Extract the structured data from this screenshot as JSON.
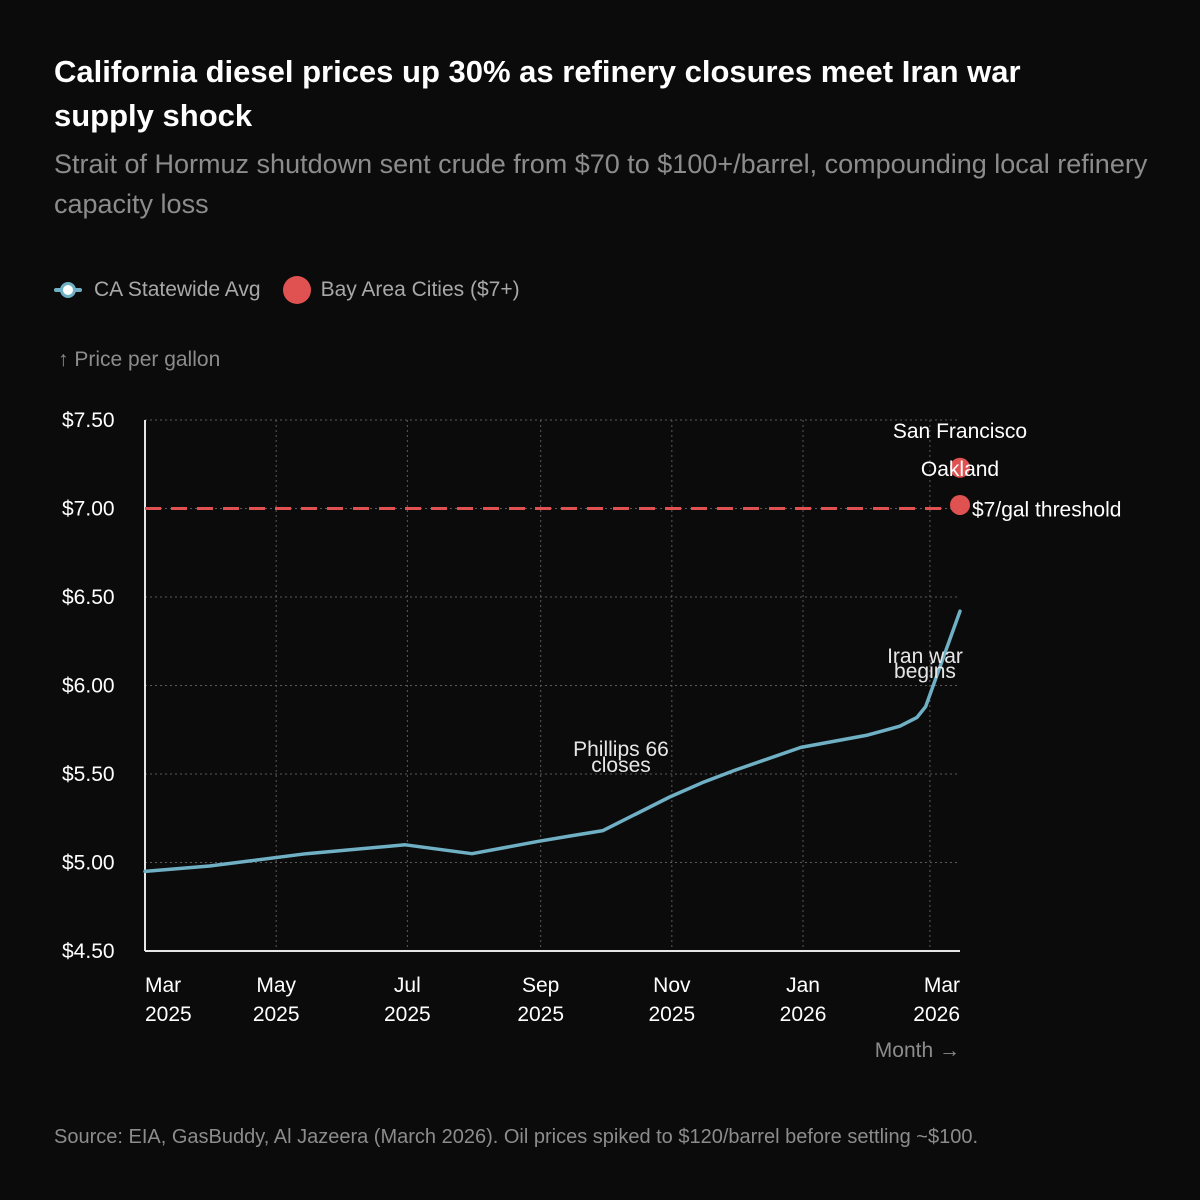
{
  "chart_data": {
    "type": "line",
    "title": "California diesel prices up 30% as refinery closures meet Iran war\n supply shock",
    "subtitle": "Strait of Hormuz shutdown sent crude from $70 to $100+/barrel, compounding local refinery capacity loss",
    "ylabel": "↑ Price per gallon",
    "xlabel": "Month →",
    "ylim": [
      4.5,
      7.5
    ],
    "y_ticks": [
      {
        "value": 4.5,
        "label": "$4.50"
      },
      {
        "value": 5.0,
        "label": "$5.00"
      },
      {
        "value": 5.5,
        "label": "$5.50"
      },
      {
        "value": 6.0,
        "label": "$6.00"
      },
      {
        "value": 6.5,
        "label": "$6.50"
      },
      {
        "value": 7.0,
        "label": "$7.00"
      },
      {
        "value": 7.5,
        "label": "$7.50"
      }
    ],
    "xlim": [
      "2025-03-01",
      "2026-03-01"
    ],
    "x_ticks": [
      {
        "date": "2025-03-01",
        "month": "Mar",
        "year": "2025"
      },
      {
        "date": "2025-05-01",
        "month": "May",
        "year": "2025"
      },
      {
        "date": "2025-07-01",
        "month": "Jul",
        "year": "2025"
      },
      {
        "date": "2025-09-01",
        "month": "Sep",
        "year": "2025"
      },
      {
        "date": "2025-11-01",
        "month": "Nov",
        "year": "2025"
      },
      {
        "date": "2026-01-01",
        "month": "Jan",
        "year": "2026"
      },
      {
        "date": "2026-03-01",
        "month": "Mar",
        "year": "2026"
      }
    ],
    "grid": true,
    "legend_position": "top-left",
    "series": [
      {
        "name": "CA Statewide Avg",
        "color": "#6fb0c4",
        "points": [
          {
            "x": "2025-03-01",
            "y": 4.95
          },
          {
            "x": "2025-03-31",
            "y": 4.98
          },
          {
            "x": "2025-05-15",
            "y": 5.05
          },
          {
            "x": "2025-06-30",
            "y": 5.1
          },
          {
            "x": "2025-07-31",
            "y": 5.05
          },
          {
            "x": "2025-08-31",
            "y": 5.12
          },
          {
            "x": "2025-09-15",
            "y": 5.15
          },
          {
            "x": "2025-09-30",
            "y": 5.18
          },
          {
            "x": "2025-10-31",
            "y": 5.37
          },
          {
            "x": "2025-11-15",
            "y": 5.45
          },
          {
            "x": "2025-11-30",
            "y": 5.52
          },
          {
            "x": "2025-12-31",
            "y": 5.65
          },
          {
            "x": "2026-01-31",
            "y": 5.72
          },
          {
            "x": "2026-02-15",
            "y": 5.77
          },
          {
            "x": "2026-02-23",
            "y": 5.82
          },
          {
            "x": "2026-02-27",
            "y": 5.88
          },
          {
            "x": "2026-03-15",
            "y": 6.42
          }
        ]
      },
      {
        "name": "Bay Area Cities ($7+)",
        "color": "#e05252",
        "points": [
          {
            "x": "2026-03-15",
            "y": 7.23,
            "label": "San Francisco"
          },
          {
            "x": "2026-03-15",
            "y": 7.02,
            "label": "Oakland"
          }
        ]
      }
    ],
    "reference_lines": [
      {
        "y": 7.0,
        "label": "$7/gal threshold",
        "color": "#e05252",
        "style": "dashed"
      }
    ],
    "annotations": [
      {
        "lines": [
          "Phillips 66",
          "closes"
        ],
        "x": "2025-11-01",
        "y": 5.45
      },
      {
        "lines": [
          "Iran war",
          "begins"
        ],
        "x": "2026-02-27",
        "y": 5.88
      }
    ]
  },
  "legend": [
    {
      "label": "CA Statewide Avg"
    },
    {
      "label": "Bay Area Cities ($7+)"
    }
  ],
  "source": "Source: EIA, GasBuddy, Al Jazeera (March 2026). Oil prices spiked to $120/barrel before settling ~$100."
}
